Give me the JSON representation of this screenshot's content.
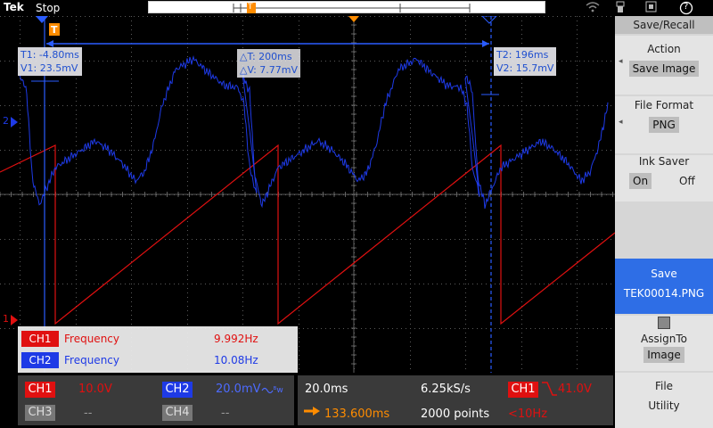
{
  "topbar": {
    "brand": "Tek",
    "run_state": "Stop",
    "trigger_marker": "T",
    "status_icons": [
      "wifi-icon",
      "usb-icon",
      "lock-icon",
      "help-icon"
    ],
    "help_symbol": "?"
  },
  "cursors": {
    "c1_time": "T1: -4.80ms",
    "c1_volt": "V1: 23.5mV",
    "c2_time": "T2: 196ms",
    "c2_volt": "V2: 15.7mV",
    "delta_time": "△T: 200ms",
    "delta_volt": "△V: 7.77mV"
  },
  "channel_markers": {
    "ch1": "1",
    "ch2": "2"
  },
  "measurements": [
    {
      "channel": "CH1",
      "name": "Frequency",
      "value": "9.992Hz",
      "color": "#e01010"
    },
    {
      "channel": "CH2",
      "name": "Frequency",
      "value": "10.08Hz",
      "color": "#1e3ae6"
    }
  ],
  "bottom": {
    "ch1_label": "CH1",
    "ch1_scale": "10.0V",
    "ch2_label": "CH2",
    "ch2_scale": "20.0mV",
    "ch2_bw": "ᴮw",
    "ch3_label": "CH3",
    "ch3_scale": "--",
    "ch4_label": "CH4",
    "ch4_scale": "--",
    "timebase": "20.0ms",
    "sample_rate": "6.25kS/s",
    "position": "133.600ms",
    "record_length": "2000 points",
    "trig_source": "CH1",
    "trig_level": "41.0V",
    "trig_freq": "<10Hz"
  },
  "side_menu": {
    "title": "Save/Recall",
    "action_label": "Action",
    "action_value": "Save Image",
    "format_label": "File Format",
    "format_value": "PNG",
    "ink_label": "Ink Saver",
    "ink_on": "On",
    "ink_off": "Off",
    "save_label": "Save",
    "save_file": "TEK00014.PNG",
    "assign_label": "AssignTo",
    "assign_value": "Image",
    "file_utility_1": "File",
    "file_utility_2": "Utility"
  },
  "colors": {
    "ch1": "#e01010",
    "ch2": "#1e3ae6",
    "trigger": "#ff8c00",
    "grid": "#5a5a5a",
    "highlight": "#2e6ee6"
  }
}
